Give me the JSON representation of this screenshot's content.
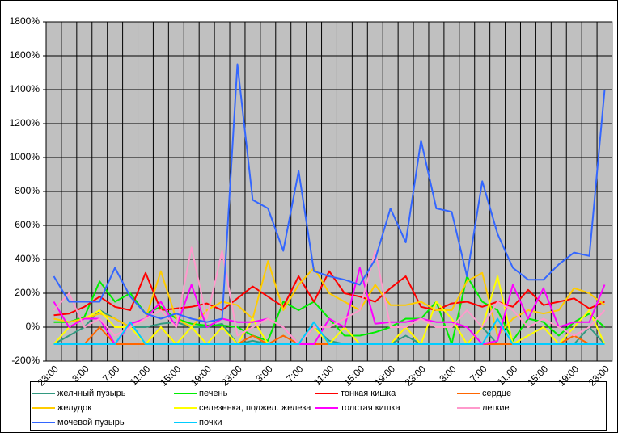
{
  "chart_data": {
    "type": "line",
    "categories": [
      "23:00",
      null,
      "3:00",
      null,
      "7:00",
      null,
      "11:00",
      null,
      "15:00",
      null,
      "19:00",
      null,
      "23:00",
      null,
      "3:00",
      null,
      "7:00",
      null,
      "11:00",
      null,
      "15:00",
      null,
      "19:00",
      null,
      "23:00",
      null,
      "3:00",
      null,
      "7:00",
      null,
      "11:00",
      null,
      "15:00",
      null,
      "19:00",
      null,
      "23:00"
    ],
    "ylim": [
      -200,
      1800
    ],
    "yticks": [
      {
        "value": -200,
        "label": "-200%"
      },
      {
        "value": 0,
        "label": "0%"
      },
      {
        "value": 200,
        "label": "200%"
      },
      {
        "value": 400,
        "label": "400%"
      },
      {
        "value": 600,
        "label": "600%"
      },
      {
        "value": 800,
        "label": "800%"
      },
      {
        "value": 1000,
        "label": "1000%"
      },
      {
        "value": 1200,
        "label": "1200%"
      },
      {
        "value": 1400,
        "label": "1400%"
      },
      {
        "value": 1600,
        "label": "1600%"
      },
      {
        "value": 1800,
        "label": "1800%"
      }
    ],
    "grid": true,
    "legend": "bottom",
    "series": [
      {
        "name": "желчный пузырь",
        "color": "#339980",
        "values": [
          -100,
          -50,
          0,
          100,
          50,
          0,
          0,
          20,
          30,
          0,
          0,
          20,
          -100,
          -80,
          -100,
          -100,
          -100,
          0,
          -80,
          -100,
          -100,
          -100,
          -100,
          -50,
          -100,
          -100,
          -100,
          -100,
          0,
          -100,
          -100,
          -100,
          -100,
          -100,
          -100,
          0,
          -100
        ]
      },
      {
        "name": "печень",
        "color": "#00ee00",
        "values": [
          30,
          30,
          60,
          270,
          150,
          200,
          80,
          120,
          50,
          20,
          10,
          10,
          0,
          -50,
          -80,
          150,
          100,
          150,
          50,
          -50,
          -50,
          -30,
          0,
          50,
          50,
          150,
          -100,
          300,
          150,
          100,
          -80,
          50,
          30,
          -50,
          30,
          80,
          0
        ]
      },
      {
        "name": "тонкая кишка",
        "color": "#ff0000",
        "values": [
          70,
          80,
          120,
          180,
          120,
          100,
          320,
          100,
          110,
          120,
          140,
          100,
          170,
          240,
          180,
          120,
          300,
          150,
          330,
          200,
          180,
          150,
          230,
          300,
          120,
          100,
          140,
          150,
          120,
          150,
          120,
          220,
          130,
          150,
          170,
          110,
          150
        ]
      },
      {
        "name": "сердце",
        "color": "#ff6600",
        "values": [
          -100,
          -100,
          -100,
          0,
          -100,
          -100,
          -100,
          0,
          -100,
          -100,
          -100,
          -100,
          -100,
          -50,
          -100,
          -50,
          -100,
          -100,
          -100,
          -100,
          -100,
          -100,
          -100,
          0,
          -100,
          -100,
          -100,
          -100,
          -100,
          -100,
          -100,
          -100,
          -100,
          -100,
          -50,
          -100,
          -100
        ]
      },
      {
        "name": "желудок",
        "color": "#ffcc00",
        "values": [
          50,
          30,
          50,
          80,
          50,
          0,
          50,
          330,
          50,
          0,
          100,
          150,
          130,
          50,
          390,
          100,
          250,
          350,
          200,
          150,
          100,
          250,
          130,
          130,
          150,
          100,
          100,
          270,
          320,
          -50,
          50,
          100,
          80,
          100,
          230,
          200,
          130
        ]
      },
      {
        "name": "селезенка, поджел. железа",
        "color": "#ffff00",
        "values": [
          -100,
          0,
          50,
          100,
          0,
          0,
          -100,
          0,
          -100,
          0,
          -100,
          0,
          -100,
          50,
          -100,
          -100,
          -100,
          0,
          -100,
          0,
          -100,
          -100,
          -100,
          0,
          -100,
          150,
          50,
          -100,
          0,
          300,
          -100,
          -50,
          0,
          -100,
          0,
          100,
          -100
        ]
      },
      {
        "name": "толстая кишка",
        "color": "#ff00ff",
        "values": [
          150,
          0,
          50,
          50,
          -100,
          20,
          50,
          150,
          0,
          250,
          0,
          50,
          30,
          30,
          50,
          0,
          -100,
          -100,
          50,
          0,
          350,
          20,
          30,
          30,
          50,
          30,
          30,
          0,
          -100,
          -80,
          250,
          50,
          230,
          0,
          30,
          30,
          250
        ]
      },
      {
        "name": "легкие",
        "color": "#ff99cc",
        "values": [
          100,
          200,
          0,
          50,
          -50,
          0,
          50,
          100,
          0,
          470,
          50,
          450,
          -50,
          0,
          50,
          0,
          -100,
          0,
          0,
          50,
          100,
          450,
          0,
          0,
          50,
          0,
          0,
          100,
          0,
          150,
          100,
          0,
          50,
          0,
          -50,
          0,
          100
        ]
      },
      {
        "name": "мочевой пузырь",
        "color": "#3366ff",
        "values": [
          300,
          150,
          150,
          150,
          350,
          180,
          80,
          50,
          80,
          50,
          30,
          50,
          1550,
          750,
          700,
          450,
          920,
          330,
          300,
          280,
          250,
          400,
          700,
          500,
          1100,
          700,
          680,
          300,
          860,
          550,
          350,
          280,
          280,
          370,
          440,
          420,
          1400
        ]
      },
      {
        "name": "почки",
        "color": "#00ccff",
        "values": [
          -100,
          -100,
          -100,
          -100,
          -100,
          30,
          -100,
          -100,
          -100,
          -100,
          -100,
          -100,
          -100,
          -100,
          -100,
          -100,
          -100,
          30,
          -100,
          -100,
          -100,
          -100,
          -100,
          -100,
          -100,
          -100,
          -100,
          -100,
          -100,
          50,
          -100,
          -100,
          -100,
          -100,
          -100,
          -100,
          -100
        ]
      }
    ]
  }
}
